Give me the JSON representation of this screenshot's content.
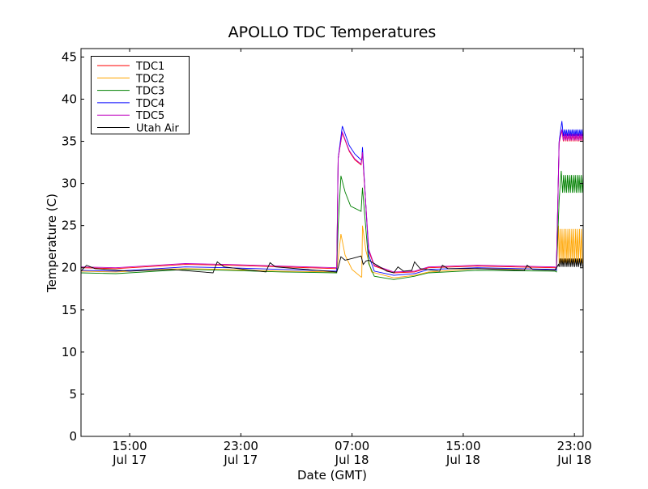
{
  "chart_data": {
    "type": "line",
    "title": "APOLLO TDC Temperatures",
    "xlabel": "Date (GMT)",
    "ylabel": "Temperature (C)",
    "x_units": "hours since Jul 17 00:00 GMT",
    "xlim": [
      11.5,
      47.63
    ],
    "ylim": [
      0,
      46
    ],
    "yticks": [
      0,
      5,
      10,
      15,
      20,
      25,
      30,
      35,
      40,
      45
    ],
    "xticks": [
      {
        "value": 15,
        "time": "15:00",
        "date": "Jul 17"
      },
      {
        "value": 23,
        "time": "23:00",
        "date": "Jul 17"
      },
      {
        "value": 31,
        "time": "07:00",
        "date": "Jul 18"
      },
      {
        "value": 39,
        "time": "15:00",
        "date": "Jul 18"
      },
      {
        "value": 47,
        "time": "23:00",
        "date": "Jul 18"
      }
    ],
    "grid": false,
    "legend_position": "top-left",
    "series": [
      {
        "name": "TDC1",
        "color": "#ff0000",
        "points": [
          [
            11.5,
            20.0
          ],
          [
            14,
            19.9
          ],
          [
            17,
            20.2
          ],
          [
            19,
            20.4
          ],
          [
            22,
            20.3
          ],
          [
            26,
            20.1
          ],
          [
            29.9,
            19.9
          ],
          [
            30.0,
            33
          ],
          [
            30.3,
            36.0
          ],
          [
            30.8,
            33.8
          ],
          [
            31.2,
            32.8
          ],
          [
            31.65,
            32.2
          ],
          [
            31.75,
            33.6
          ],
          [
            32.2,
            22
          ],
          [
            32.6,
            20.2
          ],
          [
            34,
            19.4
          ],
          [
            35.5,
            19.5
          ],
          [
            36.5,
            20.0
          ],
          [
            40,
            20.2
          ],
          [
            45.6,
            20.0
          ],
          [
            45.7,
            19.9
          ],
          [
            45.9,
            34.8
          ],
          [
            46.1,
            36.3
          ]
        ],
        "oscillation": {
          "from": 46.2,
          "to": 47.63,
          "low": 35.0,
          "high": 35.8,
          "period": 0.14
        }
      },
      {
        "name": "TDC2",
        "color": "#ffa500",
        "points": [
          [
            11.5,
            19.6
          ],
          [
            14,
            19.5
          ],
          [
            17,
            19.8
          ],
          [
            19,
            19.9
          ],
          [
            22,
            19.8
          ],
          [
            26,
            19.6
          ],
          [
            29.9,
            19.5
          ],
          [
            30.0,
            21
          ],
          [
            30.2,
            24.0
          ],
          [
            30.5,
            21.5
          ],
          [
            31.0,
            19.8
          ],
          [
            31.65,
            18.9
          ],
          [
            31.7,
            18.9
          ],
          [
            31.75,
            25.0
          ],
          [
            32.0,
            22
          ],
          [
            32.4,
            19.5
          ],
          [
            34,
            18.8
          ],
          [
            35.5,
            19.1
          ],
          [
            36.5,
            19.5
          ],
          [
            40,
            19.9
          ],
          [
            45.6,
            19.8
          ],
          [
            45.7,
            19.7
          ],
          [
            45.85,
            25.0
          ]
        ],
        "oscillation": {
          "from": 45.9,
          "to": 47.63,
          "low": 20.5,
          "high": 24.6,
          "period": 0.14
        }
      },
      {
        "name": "TDC3",
        "color": "#008000",
        "points": [
          [
            11.5,
            19.4
          ],
          [
            14,
            19.3
          ],
          [
            17,
            19.6
          ],
          [
            19,
            19.8
          ],
          [
            22,
            19.7
          ],
          [
            26,
            19.5
          ],
          [
            29.9,
            19.4
          ],
          [
            30.0,
            25
          ],
          [
            30.2,
            30.9
          ],
          [
            30.5,
            29
          ],
          [
            30.9,
            27.3
          ],
          [
            31.65,
            26.7
          ],
          [
            31.75,
            29.5
          ],
          [
            32.2,
            20.5
          ],
          [
            32.6,
            19.0
          ],
          [
            34,
            18.6
          ],
          [
            35.5,
            19.0
          ],
          [
            36.5,
            19.4
          ],
          [
            40,
            19.7
          ],
          [
            45.6,
            19.6
          ],
          [
            45.7,
            19.5
          ],
          [
            45.9,
            28
          ],
          [
            46.05,
            31.5
          ]
        ],
        "oscillation": {
          "from": 46.15,
          "to": 47.63,
          "low": 28.9,
          "high": 31.0,
          "period": 0.14
        }
      },
      {
        "name": "TDC4",
        "color": "#0000ff",
        "points": [
          [
            11.5,
            19.7
          ],
          [
            14,
            19.6
          ],
          [
            17,
            19.9
          ],
          [
            19,
            20.1
          ],
          [
            22,
            20.0
          ],
          [
            26,
            19.8
          ],
          [
            29.9,
            19.6
          ],
          [
            30.0,
            33
          ],
          [
            30.3,
            36.8
          ],
          [
            30.8,
            34.5
          ],
          [
            31.2,
            33.5
          ],
          [
            31.65,
            32.8
          ],
          [
            31.7,
            32.8
          ],
          [
            31.75,
            34.3
          ],
          [
            32.2,
            21.5
          ],
          [
            32.6,
            19.6
          ],
          [
            34,
            19.1
          ],
          [
            35.5,
            19.3
          ],
          [
            36.5,
            19.8
          ],
          [
            40,
            20.0
          ],
          [
            45.6,
            19.8
          ],
          [
            45.7,
            19.7
          ],
          [
            45.9,
            35
          ],
          [
            46.1,
            37.4
          ]
        ],
        "oscillation": {
          "from": 46.2,
          "to": 47.63,
          "low": 35.6,
          "high": 36.4,
          "period": 0.14
        }
      },
      {
        "name": "TDC5",
        "color": "#bf00bf",
        "points": [
          [
            11.5,
            20.1
          ],
          [
            14,
            20.0
          ],
          [
            17,
            20.3
          ],
          [
            19,
            20.5
          ],
          [
            22,
            20.4
          ],
          [
            26,
            20.2
          ],
          [
            29.9,
            20.0
          ],
          [
            30.0,
            33
          ],
          [
            30.3,
            36.1
          ],
          [
            30.8,
            33.9
          ],
          [
            31.2,
            32.9
          ],
          [
            31.65,
            32.3
          ],
          [
            31.75,
            33.7
          ],
          [
            32.2,
            22.2
          ],
          [
            32.6,
            20.3
          ],
          [
            34,
            19.5
          ],
          [
            35.5,
            19.6
          ],
          [
            36.5,
            20.1
          ],
          [
            40,
            20.3
          ],
          [
            45.6,
            20.1
          ],
          [
            45.7,
            20.0
          ],
          [
            45.9,
            34.9
          ],
          [
            46.1,
            36.4
          ]
        ],
        "oscillation": {
          "from": 46.2,
          "to": 47.63,
          "low": 35.1,
          "high": 35.9,
          "period": 0.14
        }
      },
      {
        "name": "Utah Air",
        "color": "#000000",
        "points": [
          [
            11.5,
            19.6
          ],
          [
            11.9,
            20.3
          ],
          [
            12.5,
            19.9
          ],
          [
            15,
            19.6
          ],
          [
            18,
            19.8
          ],
          [
            21.0,
            19.4
          ],
          [
            21.3,
            20.7
          ],
          [
            21.8,
            20.1
          ],
          [
            24.8,
            19.5
          ],
          [
            25.1,
            20.6
          ],
          [
            25.5,
            20.1
          ],
          [
            29.9,
            19.5
          ],
          [
            30.0,
            20.0
          ],
          [
            30.2,
            21.3
          ],
          [
            30.5,
            20.9
          ],
          [
            31.0,
            21.1
          ],
          [
            31.65,
            21.4
          ],
          [
            31.8,
            20.4
          ],
          [
            32.0,
            20.8
          ],
          [
            32.2,
            20.9
          ],
          [
            33.5,
            19.6
          ],
          [
            34.0,
            19.4
          ],
          [
            34.3,
            20.1
          ],
          [
            34.7,
            19.6
          ],
          [
            35.3,
            19.7
          ],
          [
            35.5,
            20.7
          ],
          [
            35.9,
            19.9
          ],
          [
            37.3,
            19.6
          ],
          [
            37.5,
            20.3
          ],
          [
            37.9,
            19.9
          ],
          [
            40,
            19.9
          ],
          [
            43.4,
            19.7
          ],
          [
            43.6,
            20.3
          ],
          [
            44.0,
            19.8
          ],
          [
            45.6,
            19.7
          ],
          [
            45.85,
            20.4
          ]
        ],
        "oscillation": {
          "from": 45.9,
          "to": 47.63,
          "low": 20.1,
          "high": 21.1,
          "period": 0.14
        }
      }
    ]
  }
}
